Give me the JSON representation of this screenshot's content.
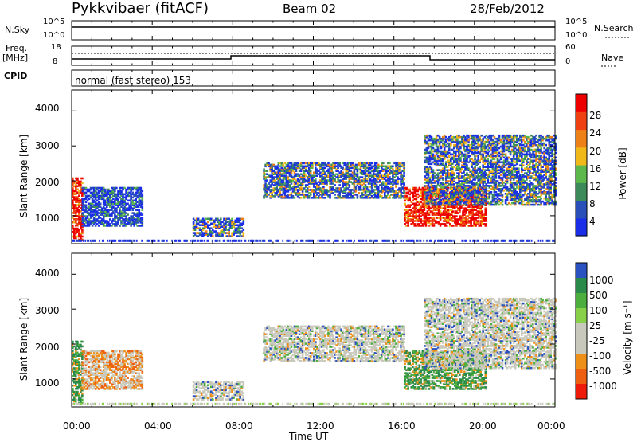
{
  "header": {
    "title": "Pykkvibaer (fitACF)",
    "beam": "Beam 02",
    "date": "28/Feb/2012"
  },
  "strip_panels": {
    "nsky_label": "N.Sky",
    "nsky_ticks": [
      "10^5",
      "10^0"
    ],
    "nsearch_label": "N.Search",
    "nsearch_ticks": [
      "10^5",
      "10^0"
    ],
    "freq_label_1": "Freq.",
    "freq_label_2": "[MHz]",
    "freq_ticks": [
      "18",
      "8"
    ],
    "nave_label": "Nave",
    "nave_ticks": [
      "60",
      "0"
    ],
    "cpid_label": "CPID",
    "cpid_text": "normal (fast stereo) 153"
  },
  "chart_data": [
    {
      "type": "heatmap",
      "name": "power",
      "ylabel": "Slant Range [km]",
      "yticks": [
        1000,
        2000,
        3000,
        4000
      ],
      "ylim": [
        200,
        4600
      ],
      "xlim": [
        0,
        24
      ],
      "colorbar_label": "Power [dB]",
      "colorbar_ticks": [
        4,
        8,
        12,
        16,
        20,
        24,
        28
      ],
      "colorbar_colors": [
        "#1a2ee8",
        "#2a4fb8",
        "#3c8a5a",
        "#5cb84a",
        "#f0b818",
        "#ee8018",
        "#ee4010",
        "#ee0000"
      ],
      "regions": [
        {
          "t0": 0.0,
          "t1": 0.5,
          "r0": 300,
          "r1": 2100,
          "level": "high"
        },
        {
          "t0": 0.5,
          "t1": 3.5,
          "r0": 700,
          "r1": 1800,
          "level": "low"
        },
        {
          "t0": 6.0,
          "t1": 8.5,
          "r0": 400,
          "r1": 900,
          "level": "mid"
        },
        {
          "t0": 9.5,
          "t1": 16.5,
          "r0": 1500,
          "r1": 2500,
          "level": "mid"
        },
        {
          "t0": 16.5,
          "t1": 20.5,
          "r0": 700,
          "r1": 1800,
          "level": "high"
        },
        {
          "t0": 17.5,
          "t1": 24.0,
          "r0": 1300,
          "r1": 3300,
          "level": "mid"
        }
      ]
    },
    {
      "type": "heatmap",
      "name": "velocity",
      "ylabel": "Slant Range [km]",
      "yticks": [
        1000,
        2000,
        3000,
        4000
      ],
      "ylim": [
        200,
        4600
      ],
      "xlim": [
        0,
        24
      ],
      "xlabel": "Time UT",
      "xticks": [
        "00:00",
        "04:00",
        "08:00",
        "12:00",
        "16:00",
        "20:00",
        "00:00"
      ],
      "colorbar_label": "Velocity [m s⁻¹]",
      "colorbar_ticks": [
        "1000",
        "500",
        "100",
        "25",
        "-25",
        "-100",
        "-500",
        "-1000"
      ],
      "colorbar_colors": [
        "#2a52c0",
        "#2a8a4a",
        "#4cae3c",
        "#88d048",
        "#c8c8bc",
        "#c8c8bc",
        "#ee9018",
        "#ee6010",
        "#ee1a0a"
      ]
    }
  ]
}
